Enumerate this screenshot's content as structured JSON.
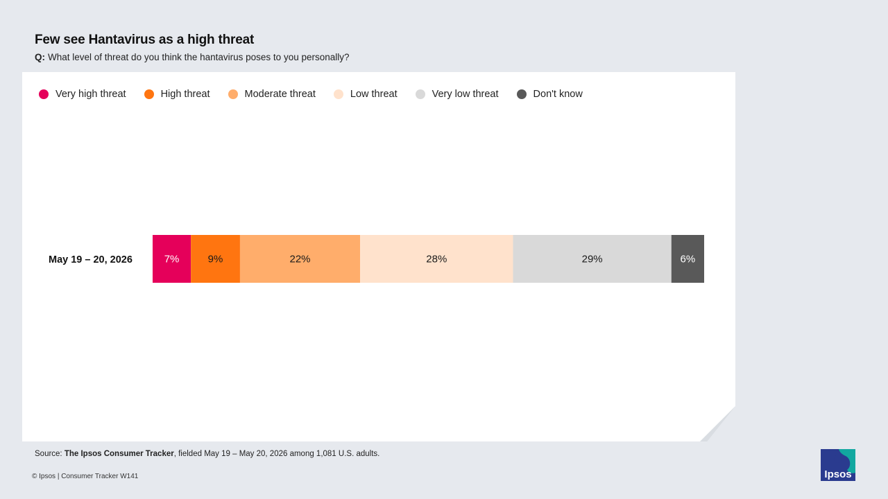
{
  "header": {
    "title": "Few see Hantavirus as a high threat",
    "question_label": "Q:",
    "question_text": "What level of threat do you think the hantavirus poses to you personally?"
  },
  "chart_data": {
    "type": "bar",
    "orientation": "horizontal",
    "stacked": true,
    "categories": [
      "May 19 – 20, 2026"
    ],
    "series": [
      {
        "name": "Very high threat",
        "values": [
          7
        ],
        "label": "7%",
        "color": "#e5005a",
        "text_color": "#ffffff"
      },
      {
        "name": "High threat",
        "values": [
          9
        ],
        "label": "9%",
        "color": "#ff7510",
        "text_color": "#1a1a1a"
      },
      {
        "name": "Moderate threat",
        "values": [
          22
        ],
        "label": "22%",
        "color": "#ffad6b",
        "text_color": "#1a1a1a"
      },
      {
        "name": "Low threat",
        "values": [
          28
        ],
        "label": "28%",
        "color": "#ffe2cc",
        "text_color": "#1a1a1a"
      },
      {
        "name": "Very low threat",
        "values": [
          29
        ],
        "label": "29%",
        "color": "#d9d9d9",
        "text_color": "#1a1a1a"
      },
      {
        "name": "Don't know",
        "values": [
          6
        ],
        "label": "6%",
        "color": "#595959",
        "text_color": "#ffffff"
      }
    ],
    "xlim": [
      0,
      101
    ],
    "legend_position": "top-left",
    "grid": false
  },
  "source": {
    "prefix": "Source:",
    "name": "The Ipsos Consumer Tracker",
    "suffix": ", fielded May 19 – May 20, 2026 among 1,081 U.S. adults."
  },
  "footer": {
    "copyright": "© Ipsos | Consumer Tracker W141"
  },
  "logo": {
    "text": "Ipsos",
    "bg_color": "#2a3b8f",
    "accent_color": "#12a8a0"
  }
}
